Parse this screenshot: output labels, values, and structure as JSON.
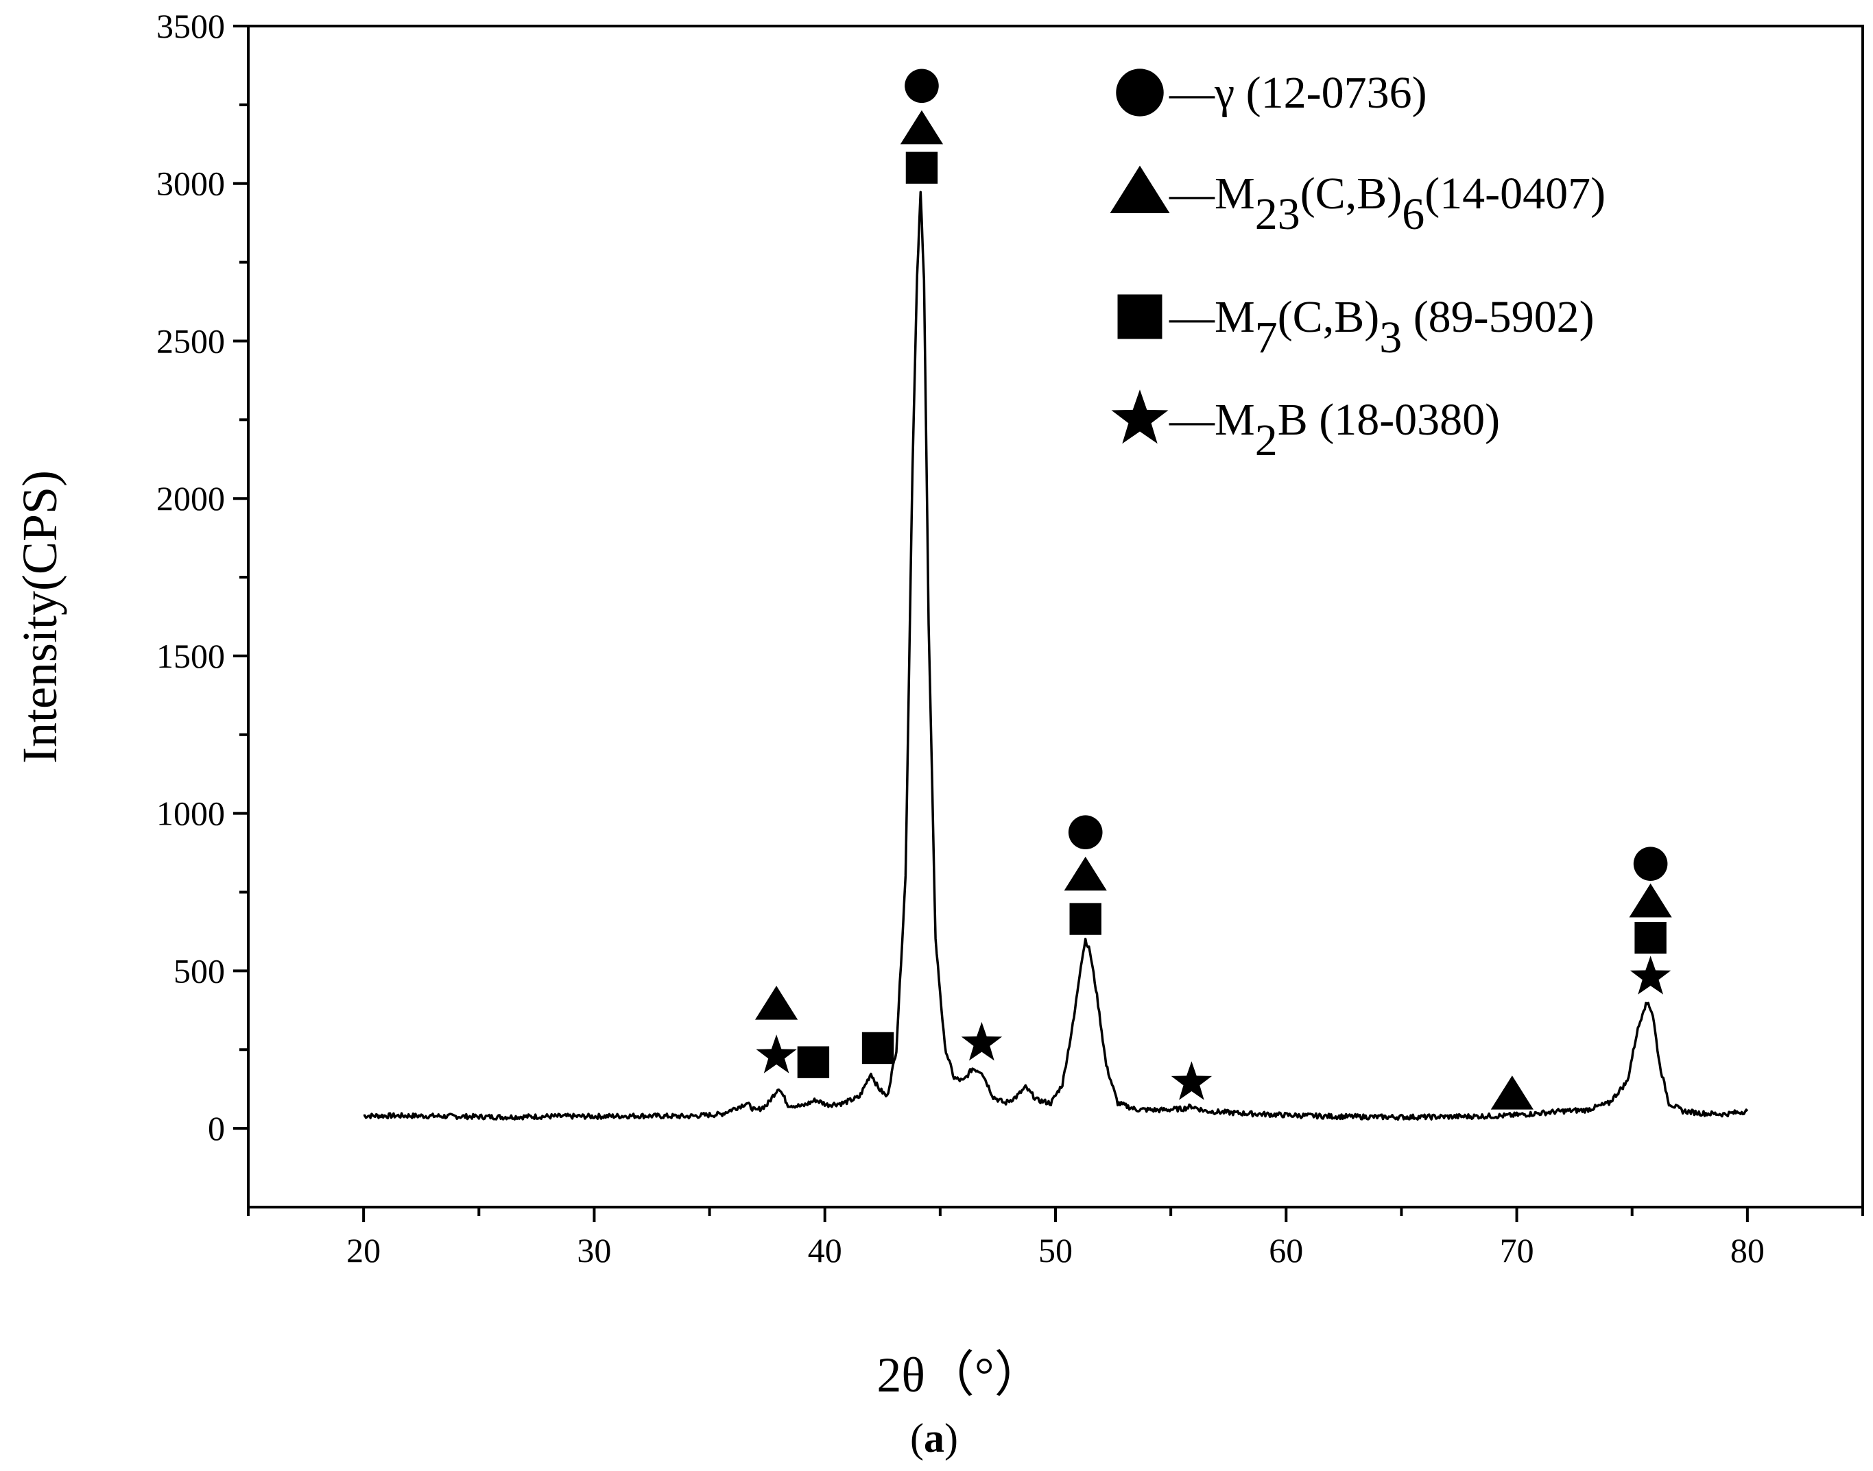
{
  "chart_data": {
    "type": "line",
    "xlabel": "2θ（°）",
    "ylabel": "Intensity(CPS)",
    "caption": {
      "open": "(",
      "letter": "a",
      "close": ")"
    },
    "xlim": [
      15,
      85
    ],
    "ylim": [
      -250,
      3500
    ],
    "x_ticks": [
      20,
      30,
      40,
      50,
      60,
      70,
      80
    ],
    "y_ticks": [
      0,
      500,
      1000,
      1500,
      2000,
      2500,
      3000,
      3500
    ],
    "grid": false,
    "series": [
      {
        "x": [
          20.0,
          22,
          24,
          26,
          28,
          30,
          32,
          34,
          35.5,
          36.3,
          36.6,
          37.0,
          37.5,
          38.0,
          38.4,
          39.0,
          39.6,
          40.1,
          40.8,
          41.5,
          42.0,
          42.3,
          42.7,
          43.1,
          43.5,
          43.8,
          44.0,
          44.15,
          44.3,
          44.5,
          44.8,
          45.2,
          45.6,
          46.0,
          46.4,
          46.8,
          47.3,
          47.8,
          48.3,
          48.7,
          49.2,
          49.8,
          50.3,
          50.8,
          51.1,
          51.3,
          51.5,
          51.8,
          52.2,
          52.7,
          53.5,
          54.5,
          55.5,
          55.9,
          56.5,
          58,
          60,
          62,
          64,
          66,
          68,
          69.5,
          70.5,
          72,
          73,
          74,
          74.8,
          75.2,
          75.5,
          75.7,
          75.9,
          76.2,
          76.6,
          77.2,
          78,
          79,
          80
        ],
        "y": [
          40,
          40,
          38,
          36,
          38,
          38,
          40,
          38,
          45,
          70,
          80,
          55,
          75,
          130,
          75,
          70,
          90,
          75,
          80,
          100,
          175,
          130,
          100,
          250,
          800,
          2100,
          2700,
          2970,
          2700,
          1600,
          600,
          260,
          160,
          150,
          190,
          180,
          100,
          80,
          100,
          130,
          90,
          80,
          140,
          350,
          520,
          600,
          560,
          420,
          200,
          80,
          60,
          58,
          62,
          70,
          55,
          48,
          42,
          38,
          36,
          36,
          38,
          40,
          45,
          55,
          58,
          80,
          150,
          300,
          380,
          400,
          360,
          200,
          80,
          55,
          48,
          45,
          55
        ]
      }
    ],
    "annotations": [
      {
        "symbol": "circle",
        "x": 44.2,
        "y": 3310
      },
      {
        "symbol": "triangle",
        "x": 44.2,
        "y": 3170
      },
      {
        "symbol": "square",
        "x": 44.2,
        "y": 3050
      },
      {
        "symbol": "triangle",
        "x": 37.9,
        "y": 390
      },
      {
        "symbol": "star",
        "x": 37.9,
        "y": 230
      },
      {
        "symbol": "square",
        "x": 39.5,
        "y": 210
      },
      {
        "symbol": "square",
        "x": 42.3,
        "y": 255
      },
      {
        "symbol": "star",
        "x": 46.8,
        "y": 270
      },
      {
        "symbol": "circle",
        "x": 51.3,
        "y": 940
      },
      {
        "symbol": "triangle",
        "x": 51.3,
        "y": 800
      },
      {
        "symbol": "square",
        "x": 51.3,
        "y": 665
      },
      {
        "symbol": "star",
        "x": 55.9,
        "y": 145
      },
      {
        "symbol": "triangle",
        "x": 69.8,
        "y": 105
      },
      {
        "symbol": "circle",
        "x": 75.8,
        "y": 840
      },
      {
        "symbol": "triangle",
        "x": 75.8,
        "y": 715
      },
      {
        "symbol": "square",
        "x": 75.8,
        "y": 605
      },
      {
        "symbol": "star",
        "x": 75.8,
        "y": 480
      }
    ],
    "legend": {
      "placement": "top-right",
      "items": [
        {
          "symbol": "circle",
          "dash": "—",
          "text": "γ (12-0736)"
        },
        {
          "symbol": "triangle",
          "dash": "—",
          "main": "M",
          "sub1": "23",
          "mid": "(C,B)",
          "sub2": "6",
          "tail": "(14-0407)"
        },
        {
          "symbol": "square",
          "dash": "—",
          "main": "M",
          "sub1": "7",
          "mid": "(C,B)",
          "sub2": "3",
          "tail": " (89-5902)"
        },
        {
          "symbol": "star",
          "dash": "—",
          "main": "M",
          "sub1": "2",
          "tail": "B (18-0380)"
        }
      ]
    }
  }
}
